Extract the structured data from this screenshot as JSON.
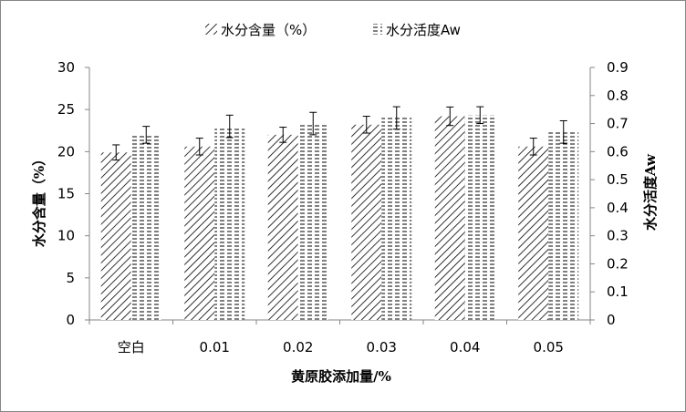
{
  "chart_data": {
    "type": "bar",
    "categories": [
      "空白",
      "0.01",
      "0.02",
      "0.03",
      "0.04",
      "0.05"
    ],
    "xlabel": "黄原胶添加量/%",
    "series": [
      {
        "name": "水分含量（%）",
        "axis": "left",
        "pattern": "diagonal-hatch",
        "values": [
          19.9,
          20.6,
          22.0,
          23.2,
          24.2,
          20.6
        ],
        "errors": [
          0.9,
          1.0,
          0.9,
          1.0,
          1.1,
          1.0
        ]
      },
      {
        "name": "水分活度Aw",
        "axis": "right",
        "pattern": "horizontal-dash",
        "values": [
          0.66,
          0.69,
          0.7,
          0.72,
          0.73,
          0.67
        ],
        "errors": [
          0.03,
          0.04,
          0.04,
          0.04,
          0.03,
          0.04
        ]
      }
    ],
    "y_left": {
      "label": "水分含量（%）",
      "ylim": [
        0,
        30
      ],
      "ticks": [
        "0",
        "5",
        "10",
        "15",
        "20",
        "25",
        "30"
      ]
    },
    "y_right": {
      "label": "水分活度Aw",
      "ylim": [
        0,
        0.9
      ],
      "ticks": [
        "0",
        "0.1",
        "0.2",
        "0.3",
        "0.4",
        "0.5",
        "0.6",
        "0.7",
        "0.8",
        "0.9"
      ]
    },
    "grid": false,
    "legend_position": "top-center",
    "colors": {
      "axis": "#868686",
      "ink": "#000000",
      "frame": "#868686"
    }
  }
}
